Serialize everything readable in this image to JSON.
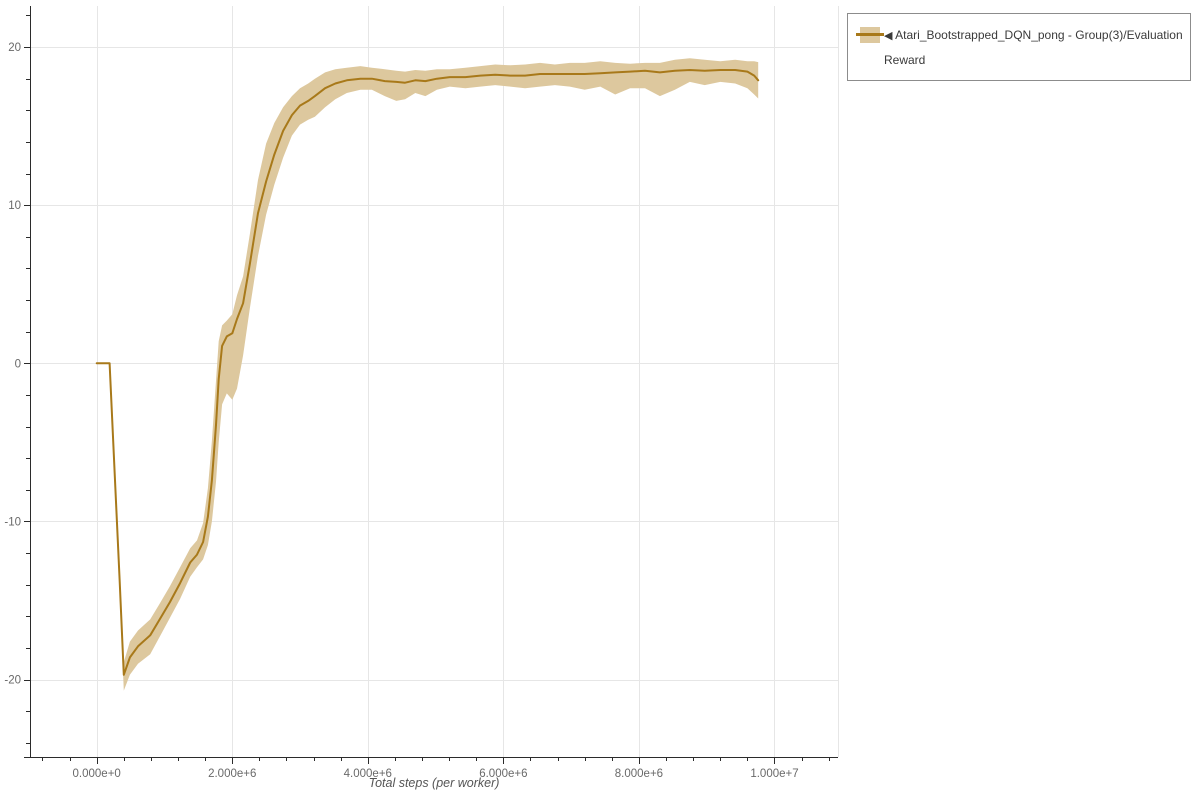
{
  "chart": {
    "x_axis_title": "Total steps (per worker)",
    "legend": {
      "marker": "◀",
      "label": "Atari_Bootstrapped_DQN_pong - Group(3)/Evaluation Reward"
    }
  },
  "chart_data": {
    "type": "line",
    "title": "",
    "xlabel": "Total steps (per worker)",
    "ylabel": "",
    "legend_position": "outside-top-right",
    "grid": true,
    "series": [
      {
        "name": "Atari_Bootstrapped_DQN_pong - Group(3)/Evaluation Reward",
        "has_uncertainty_band": true
      }
    ],
    "xlim": [
      -984000,
      10937000
    ],
    "ylim": [
      -24.9,
      22.6
    ],
    "x_major_ticks": [
      0,
      2000000,
      4000000,
      6000000,
      8000000,
      10000000
    ],
    "x_tick_labels": [
      "0.000e+0",
      "2.000e+6",
      "4.000e+6",
      "6.000e+6",
      "8.000e+6",
      "1.000e+7"
    ],
    "x_minor_step": 400000,
    "y_major_ticks": [
      20,
      10,
      0,
      -10,
      -20
    ],
    "y_tick_labels": [
      "20",
      "10",
      "0",
      "-10",
      "-20"
    ],
    "y_minor_step": 2,
    "colors": {
      "line": "#a8791a",
      "band": "#ddc89e",
      "grid": "#e6e6e6",
      "axis": "#2b2b2b",
      "tick_label": "#696969",
      "axis_title": "#555555",
      "legend_border": "#8c8c8c",
      "legend_text": "#3a3a3a"
    },
    "x": [
      0,
      190000,
      270000,
      340000,
      400000,
      490000,
      610000,
      790000,
      930000,
      1080000,
      1230000,
      1380000,
      1480000,
      1570000,
      1640000,
      1700000,
      1760000,
      1800000,
      1850000,
      1920000,
      2000000,
      2070000,
      2160000,
      2260000,
      2380000,
      2500000,
      2620000,
      2750000,
      2880000,
      3000000,
      3120000,
      3220000,
      3370000,
      3520000,
      3690000,
      3890000,
      4060000,
      4250000,
      4420000,
      4550000,
      4700000,
      4850000,
      5020000,
      5210000,
      5440000,
      5660000,
      5880000,
      6100000,
      6320000,
      6540000,
      6760000,
      6980000,
      7200000,
      7430000,
      7650000,
      7870000,
      8090000,
      8310000,
      8530000,
      8750000,
      8970000,
      9200000,
      9420000,
      9600000,
      9700000,
      9760000
    ],
    "mean": [
      0,
      0,
      -7.4,
      -13.8,
      -19.7,
      -18.6,
      -17.9,
      -17.2,
      -16.2,
      -15.1,
      -13.9,
      -12.6,
      -12.1,
      -11.3,
      -9.7,
      -7.4,
      -3.9,
      -1.0,
      1.1,
      1.7,
      1.9,
      2.8,
      3.8,
      6.3,
      9.5,
      11.5,
      13.2,
      14.7,
      15.7,
      16.3,
      16.6,
      16.9,
      17.4,
      17.7,
      17.9,
      18.0,
      18.0,
      17.85,
      17.8,
      17.75,
      17.9,
      17.85,
      18.0,
      18.1,
      18.1,
      18.2,
      18.25,
      18.2,
      18.2,
      18.3,
      18.3,
      18.3,
      18.3,
      18.35,
      18.4,
      18.45,
      18.5,
      18.4,
      18.5,
      18.55,
      18.5,
      18.55,
      18.55,
      18.45,
      18.2,
      17.9
    ],
    "band_low": [
      0,
      0,
      -8.0,
      -14.6,
      -20.7,
      -19.7,
      -19.0,
      -18.4,
      -17.3,
      -16.1,
      -14.9,
      -13.5,
      -12.9,
      -12.4,
      -11.5,
      -10.0,
      -7.5,
      -5.0,
      -2.6,
      -1.9,
      -2.3,
      -1.6,
      0.5,
      3.5,
      6.8,
      9.4,
      11.3,
      13.0,
      14.4,
      15.1,
      15.4,
      15.6,
      16.2,
      16.7,
      17.1,
      17.3,
      17.3,
      16.9,
      16.6,
      16.7,
      17.1,
      16.9,
      17.3,
      17.5,
      17.4,
      17.5,
      17.6,
      17.5,
      17.4,
      17.5,
      17.6,
      17.5,
      17.3,
      17.5,
      17.0,
      17.4,
      17.4,
      16.9,
      17.3,
      17.8,
      17.6,
      17.8,
      17.7,
      17.4,
      17.0,
      16.75
    ],
    "band_high": [
      0,
      0,
      -6.8,
      -13.0,
      -18.9,
      -17.6,
      -16.9,
      -16.2,
      -15.2,
      -14.1,
      -12.9,
      -11.7,
      -11.2,
      -10.1,
      -7.9,
      -4.9,
      -1.1,
      1.4,
      2.4,
      2.7,
      3.1,
      4.3,
      5.5,
      8.2,
      11.6,
      13.9,
      15.2,
      16.2,
      16.9,
      17.4,
      17.7,
      18.0,
      18.4,
      18.6,
      18.7,
      18.8,
      18.7,
      18.6,
      18.5,
      18.45,
      18.55,
      18.5,
      18.6,
      18.6,
      18.7,
      18.8,
      18.9,
      18.85,
      18.9,
      19.0,
      18.9,
      19.0,
      19.0,
      19.1,
      19.0,
      18.95,
      19.0,
      19.0,
      19.2,
      19.3,
      19.2,
      19.1,
      19.2,
      19.1,
      19.1,
      19.05
    ]
  }
}
